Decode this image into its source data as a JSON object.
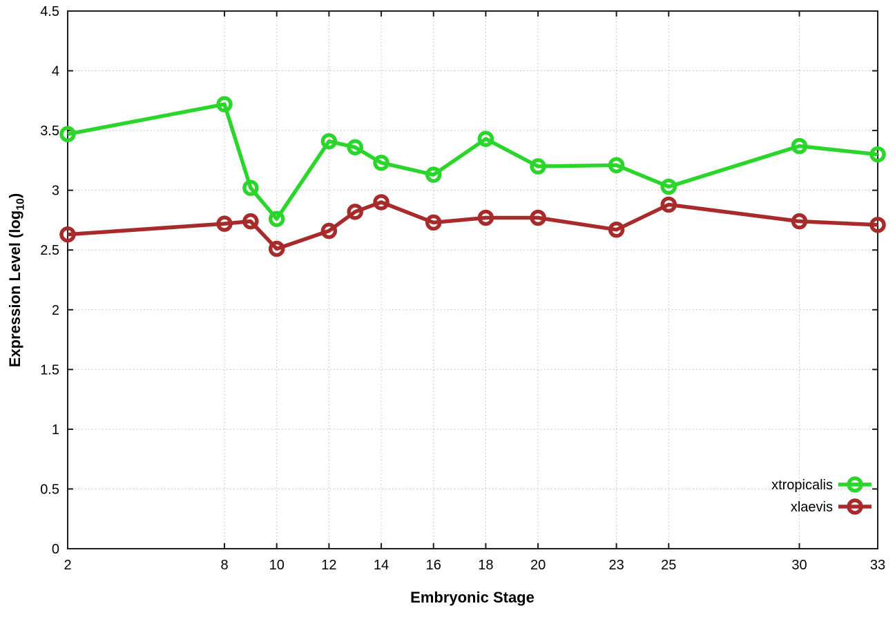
{
  "chart_data": {
    "type": "line",
    "title": "",
    "xlabel": "Embryonic Stage",
    "ylabel": "Expression Level (log10)",
    "ylabel_main": "Expression Level (log",
    "ylabel_sub": "10",
    "ylabel_close": ")",
    "xlim": [
      2,
      33
    ],
    "ylim": [
      0,
      4.5
    ],
    "xticks": [
      2,
      8,
      10,
      12,
      14,
      16,
      18,
      20,
      23,
      25,
      30,
      33
    ],
    "yticks": [
      0,
      0.5,
      1,
      1.5,
      2,
      2.5,
      3,
      3.5,
      4,
      4.5
    ],
    "grid": true,
    "legend_position": "bottom-right-inside",
    "x": [
      2,
      8,
      9,
      10,
      12,
      13,
      14,
      16,
      18,
      20,
      23,
      25,
      30,
      33
    ],
    "series": [
      {
        "name": "xtropicalis",
        "color": "#2bd52b",
        "marker": "open-circle",
        "values": [
          3.47,
          3.72,
          3.02,
          2.76,
          3.41,
          3.36,
          3.23,
          3.13,
          3.43,
          3.2,
          3.21,
          3.03,
          3.37,
          3.3
        ]
      },
      {
        "name": "xlaevis",
        "color": "#a82b2b",
        "marker": "open-circle",
        "values": [
          2.63,
          2.72,
          2.74,
          2.51,
          2.66,
          2.82,
          2.9,
          2.73,
          2.77,
          2.77,
          2.67,
          2.88,
          2.74,
          2.71
        ]
      }
    ]
  },
  "style": {
    "background": "#ffffff",
    "border_color": "#1c1c1c",
    "grid_color": "#b9b9b9",
    "text_color": "#000000"
  }
}
